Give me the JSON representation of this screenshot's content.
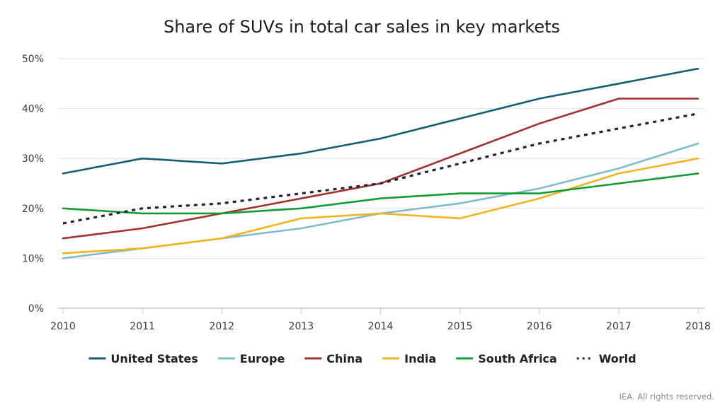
{
  "chart_data": {
    "type": "line",
    "title": "Share of SUVs in total car sales in key markets",
    "xlabel": "",
    "ylabel": "",
    "x": [
      "2010",
      "2011",
      "2012",
      "2013",
      "2014",
      "2015",
      "2016",
      "2017",
      "2018"
    ],
    "ylim": [
      0,
      50
    ],
    "yticks": [
      0,
      10,
      20,
      30,
      40,
      50
    ],
    "ytick_labels": [
      "0%",
      "10%",
      "20%",
      "30%",
      "40%",
      "50%"
    ],
    "grid": true,
    "legend_position": "bottom",
    "series": [
      {
        "name": "United States",
        "color": "#135f72",
        "style": "solid",
        "values": [
          27,
          30,
          29,
          31,
          34,
          38,
          42,
          45,
          48
        ]
      },
      {
        "name": "Europe",
        "color": "#7fbccb",
        "style": "solid",
        "values": [
          10,
          12,
          14,
          16,
          19,
          21,
          24,
          28,
          33
        ]
      },
      {
        "name": "China",
        "color": "#a3302e",
        "style": "solid",
        "values": [
          14,
          16,
          19,
          22,
          25,
          31,
          37,
          42,
          42
        ]
      },
      {
        "name": "India",
        "color": "#f1b41f",
        "style": "solid",
        "values": [
          11,
          12,
          14,
          18,
          19,
          18,
          22,
          27,
          30
        ]
      },
      {
        "name": "South Africa",
        "color": "#139b36",
        "style": "solid",
        "values": [
          20,
          19,
          19,
          20,
          22,
          23,
          23,
          25,
          27
        ]
      },
      {
        "name": "World",
        "color": "#22223a",
        "style": "dotted",
        "values": [
          17,
          20,
          21,
          23,
          25,
          29,
          33,
          36,
          39
        ]
      }
    ]
  },
  "credit": "IEA. All rights reserved."
}
